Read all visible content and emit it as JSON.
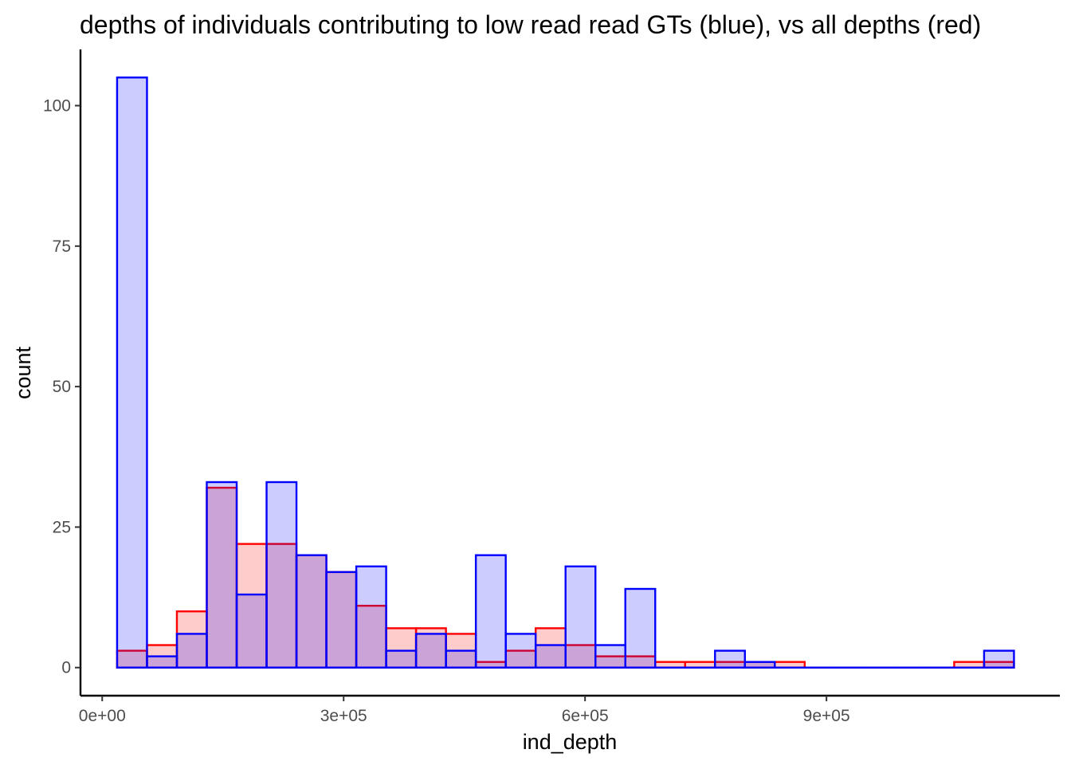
{
  "chart_data": {
    "type": "bar",
    "title": "depths of individuals contributing to low read read GTs (blue), vs all depths (red)",
    "xlabel": "ind_depth",
    "ylabel": "count",
    "xlim": [
      -27000,
      1190000
    ],
    "ylim": [
      -5,
      110
    ],
    "x_ticks": [
      {
        "value": 0,
        "label": "0e+00"
      },
      {
        "value": 300000,
        "label": "3e+05"
      },
      {
        "value": 600000,
        "label": "6e+05"
      },
      {
        "value": 900000,
        "label": "9e+05"
      }
    ],
    "y_ticks": [
      {
        "value": 0,
        "label": "0"
      },
      {
        "value": 25,
        "label": "25"
      },
      {
        "value": 50,
        "label": "50"
      },
      {
        "value": 75,
        "label": "75"
      },
      {
        "value": 100,
        "label": "100"
      }
    ],
    "bin_start": 18500,
    "bin_width": 37150,
    "grid": false,
    "legend": "none",
    "series": [
      {
        "color": "#ff0000",
        "fill": "#ffcccc",
        "values": [
          3,
          4,
          10,
          32,
          22,
          22,
          20,
          17,
          11,
          7,
          7,
          6,
          1,
          3,
          7,
          4,
          2,
          2,
          1,
          1,
          1,
          1,
          1,
          0,
          0,
          0,
          0,
          0,
          1,
          1
        ]
      },
      {
        "color": "#0000ff",
        "fill": "#ccccff",
        "values": [
          105,
          2,
          6,
          33,
          13,
          33,
          20,
          17,
          18,
          3,
          6,
          3,
          20,
          6,
          4,
          18,
          4,
          14,
          0,
          0,
          3,
          1,
          0,
          0,
          0,
          0,
          0,
          0,
          0,
          3
        ]
      }
    ]
  }
}
